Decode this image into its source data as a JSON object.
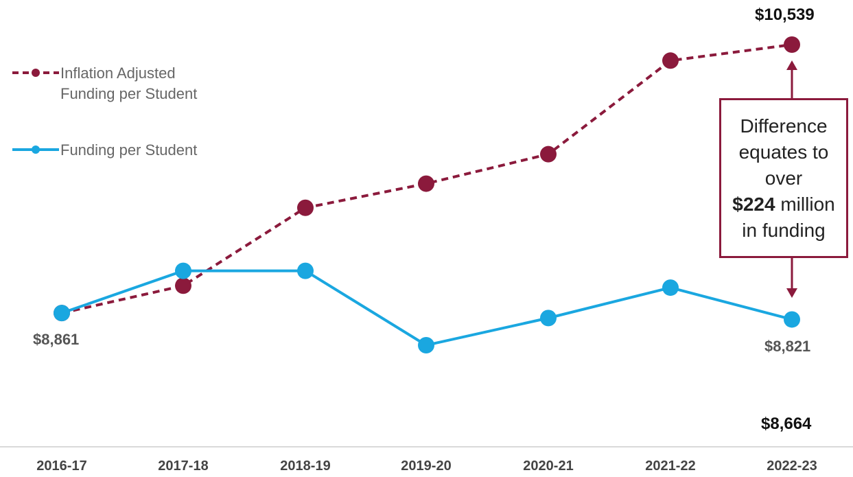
{
  "chart_data": {
    "type": "line",
    "categories": [
      "2016-17",
      "2017-18",
      "2018-19",
      "2019-20",
      "2020-21",
      "2021-22",
      "2022-23"
    ],
    "series": [
      {
        "name": "Inflation Adjusted Funding per Student",
        "style": "dashed",
        "color": "#8b1a3c",
        "values": [
          8861,
          9032,
          9519,
          9670,
          9854,
          10439,
          10539
        ]
      },
      {
        "name": "Funding per Student",
        "style": "solid",
        "color": "#1aa7e0",
        "values": [
          8861,
          9125,
          9125,
          8660,
          8830,
          9020,
          8821
        ]
      }
    ],
    "annotations": {
      "start_value_label": "$8,861",
      "end_adjusted_label": "$10,539",
      "end_actual_label": "$8,821",
      "baseline_label": "$8,664",
      "difference_text_prefix": "Difference equates to over",
      "difference_amount": "$224",
      "difference_text_suffix": "million in funding"
    },
    "grid": false,
    "legend_position": "top-left"
  },
  "legend": {
    "items": [
      {
        "label": "Inflation Adjusted Funding per Student"
      },
      {
        "label": "Funding per Student"
      }
    ]
  },
  "colors": {
    "adjusted": "#8b1a3c",
    "actual": "#1aa7e0"
  }
}
